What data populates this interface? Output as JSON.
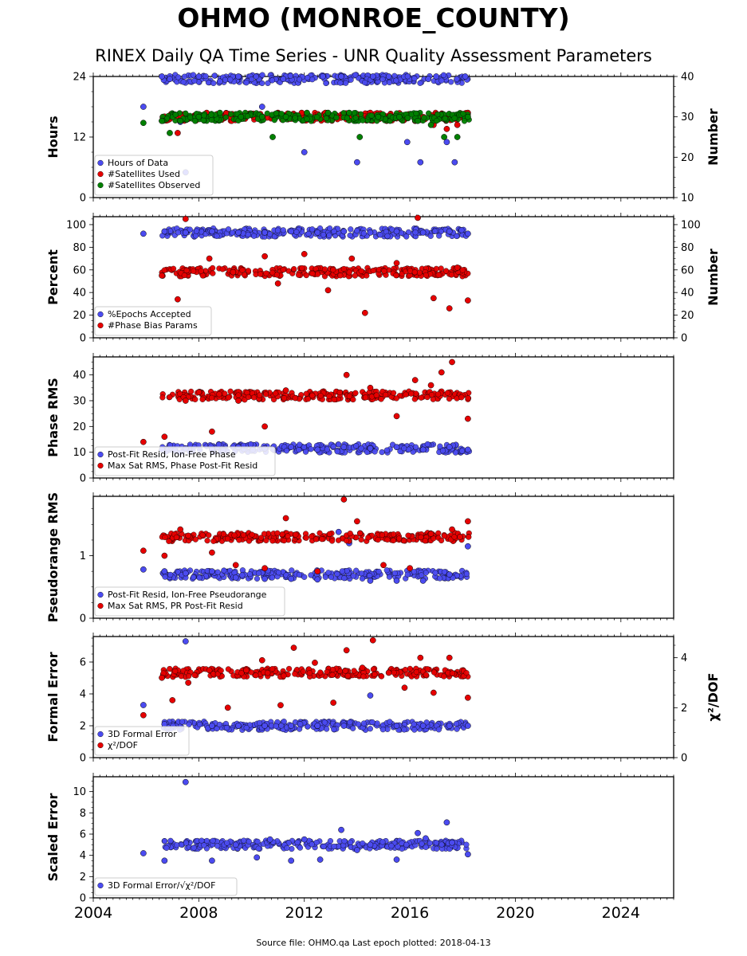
{
  "header": {
    "title": "OHMO (MONROE_COUNTY)",
    "subtitle": "RINEX Daily QA Time Series - UNR Quality Assessment Parameters"
  },
  "footer": {
    "text": "Source file: OHMO.qa Last epoch plotted: 2018-04-13"
  },
  "colors": {
    "blue": "#4b4bf0",
    "red": "#e60000",
    "green": "#008000"
  },
  "chart_data": [
    {
      "type": "scatter",
      "ylabel": "Hours",
      "ylabel_right": "Number",
      "xlim": [
        2004,
        2026
      ],
      "ylim": [
        0,
        24
      ],
      "ylim_right": [
        10,
        40
      ],
      "yticks": [
        "0",
        "12",
        "24"
      ],
      "yticks_right": [
        "10",
        "20",
        "30",
        "40"
      ],
      "legend": "lower-left",
      "series": [
        {
          "name": "Hours of Data",
          "color": "blue",
          "axis": "left",
          "x": [
            2005.9,
            2006.6,
            2006.9,
            2007.3,
            2007.5,
            2008.0,
            2008.8,
            2009.5,
            2010.4,
            2011.2,
            2012.0,
            2012.7,
            2013.4,
            2014.0,
            2014.6,
            2015.2,
            2015.9,
            2016.4,
            2016.7,
            2017.0,
            2017.4,
            2017.7,
            2018.1
          ],
          "y": [
            18,
            24,
            23.5,
            15,
            5,
            24,
            23,
            24,
            18,
            23.5,
            9,
            24,
            24,
            7,
            24,
            24,
            11,
            7,
            23.5,
            24,
            11,
            7,
            24
          ]
        },
        {
          "name": "#Satellites Used",
          "color": "red",
          "axis": "right",
          "x": [
            2006.6,
            2007.2,
            2007.6,
            2008.3,
            2009.2,
            2010.1,
            2011.0,
            2011.9,
            2012.8,
            2013.7,
            2014.5,
            2015.4,
            2016.2,
            2016.9,
            2017.4,
            2017.8,
            2018.2
          ],
          "y": [
            29,
            26,
            29.5,
            31,
            30,
            30,
            31,
            31,
            31,
            30,
            31,
            30,
            29,
            28,
            27,
            28,
            31
          ]
        },
        {
          "name": "#Satellites Observed",
          "color": "green",
          "axis": "right",
          "x": [
            2005.9,
            2006.6,
            2006.9,
            2007.3,
            2008.0,
            2008.8,
            2009.6,
            2010.4,
            2010.8,
            2011.3,
            2012.1,
            2012.9,
            2013.7,
            2014.1,
            2014.8,
            2015.6,
            2016.3,
            2016.8,
            2017.3,
            2017.8,
            2018.2
          ],
          "y": [
            28.5,
            29,
            26,
            29,
            30,
            31,
            30,
            30,
            25,
            30,
            31,
            31,
            31,
            25,
            30,
            30,
            29,
            28,
            25,
            25,
            30
          ]
        }
      ]
    },
    {
      "type": "scatter",
      "ylabel": "Percent",
      "ylabel_right": "Number",
      "xlim": [
        2004,
        2026
      ],
      "ylim": [
        0,
        107
      ],
      "ylim_right": [
        0,
        107
      ],
      "yticks": [
        "0",
        "20",
        "40",
        "60",
        "80",
        "100"
      ],
      "yticks_right": [
        "0",
        "20",
        "40",
        "60",
        "80",
        "100"
      ],
      "legend": "lower-left",
      "series": [
        {
          "name": "%Epochs Accepted",
          "color": "blue",
          "axis": "left",
          "x": [
            2005.9,
            2006.7,
            2007.5,
            2008.5,
            2009.5,
            2010.5,
            2011.5,
            2012.5,
            2013.5,
            2014.5,
            2015.5,
            2016.5,
            2017.5,
            2018.2
          ],
          "y": [
            92,
            94,
            93,
            94,
            93,
            93,
            94,
            93,
            94,
            93,
            94,
            93,
            94,
            92
          ]
        },
        {
          "name": "#Phase Bias Params",
          "color": "red",
          "axis": "right",
          "x": [
            2006.6,
            2007.2,
            2007.5,
            2008.4,
            2009.3,
            2010.5,
            2011.0,
            2012.0,
            2012.9,
            2013.8,
            2014.3,
            2015.5,
            2016.3,
            2016.9,
            2017.5,
            2017.8,
            2018.2
          ],
          "y": [
            55,
            34,
            105,
            70,
            58,
            72,
            48,
            74,
            42,
            70,
            22,
            66,
            106,
            35,
            26,
            62,
            33
          ]
        }
      ]
    },
    {
      "type": "scatter",
      "ylabel": "Phase RMS",
      "xlim": [
        2004,
        2026
      ],
      "ylim": [
        0,
        47
      ],
      "yticks": [
        "0",
        "10",
        "20",
        "30",
        "40"
      ],
      "legend": "lower-left",
      "series": [
        {
          "name": "Post-Fit Resid, Ion-Free Phase",
          "color": "blue",
          "axis": "left",
          "x": [
            2006.6,
            2007.5,
            2008.5,
            2009.5,
            2010.5,
            2011.5,
            2012.5,
            2013.5,
            2014.5,
            2015.5,
            2016.5,
            2017.5,
            2018.2
          ],
          "y": [
            11,
            11.5,
            11,
            12,
            11.5,
            12,
            11,
            12,
            11.5,
            12,
            11,
            12,
            11
          ]
        },
        {
          "name": "Max Sat RMS, Phase Post-Fit Resid",
          "color": "red",
          "axis": "left",
          "x": [
            2005.9,
            2006.7,
            2007.5,
            2008.5,
            2009.5,
            2010.5,
            2011.3,
            2012.3,
            2013.6,
            2014.5,
            2015.5,
            2016.2,
            2016.8,
            2017.2,
            2017.6,
            2018.2
          ],
          "y": [
            14,
            16,
            30,
            18,
            30,
            20,
            34,
            32,
            40,
            35,
            24,
            38,
            36,
            41,
            45,
            23
          ]
        }
      ]
    },
    {
      "type": "scatter",
      "ylabel": "Pseudorange RMS",
      "xlim": [
        2004,
        2026
      ],
      "ylim": [
        0,
        1.95
      ],
      "yticks": [
        "0",
        "1"
      ],
      "legend": "lower-left",
      "series": [
        {
          "name": "Post-Fit Resid, Ion-Free Pseudorange",
          "color": "blue",
          "axis": "left",
          "x": [
            2005.9,
            2006.7,
            2007.5,
            2008.5,
            2009.4,
            2010.5,
            2011.5,
            2012.5,
            2013.3,
            2013.7,
            2014.5,
            2015.5,
            2016.5,
            2017.5,
            2018.2
          ],
          "y": [
            0.78,
            0.75,
            0.72,
            0.75,
            0.65,
            0.63,
            0.63,
            0.62,
            1.38,
            1.2,
            0.6,
            0.6,
            0.6,
            0.7,
            1.15
          ]
        },
        {
          "name": "Max Sat RMS, PR Post-Fit Resid",
          "color": "red",
          "axis": "left",
          "x": [
            2005.9,
            2006.7,
            2007.3,
            2007.6,
            2008.5,
            2009.4,
            2010.5,
            2011.3,
            2012.5,
            2013.5,
            2014.0,
            2015.0,
            2016.0,
            2016.8,
            2017.6,
            2017.9,
            2018.2
          ],
          "y": [
            1.08,
            1.0,
            1.42,
            1.32,
            1.05,
            0.85,
            0.8,
            1.6,
            0.75,
            1.9,
            1.55,
            0.85,
            0.8,
            1.35,
            1.42,
            1.3,
            1.55
          ]
        }
      ]
    },
    {
      "type": "scatter",
      "ylabel": "Formal Error",
      "ylabel_right": "χ²/DOF",
      "xlim": [
        2004,
        2026
      ],
      "ylim": [
        0,
        7.6
      ],
      "ylim_right": [
        0,
        4.85
      ],
      "yticks": [
        "0",
        "2",
        "4",
        "6"
      ],
      "yticks_right": [
        "0",
        "2",
        "4"
      ],
      "legend": "lower-left",
      "series": [
        {
          "name": "3D Formal Error",
          "color": "blue",
          "axis": "left",
          "x": [
            2005.9,
            2006.7,
            2007.5,
            2008.5,
            2009.5,
            2010.5,
            2011.5,
            2012.5,
            2013.5,
            2014.5,
            2015.5,
            2016.5,
            2017.5,
            2018.2
          ],
          "y": [
            3.3,
            2.1,
            7.3,
            2.0,
            2.0,
            2.0,
            2.0,
            2.0,
            2.0,
            3.9,
            2.0,
            2.0,
            2.0,
            2.0
          ]
        },
        {
          "name": "χ²/DOF",
          "color": "red",
          "axis": "right",
          "x": [
            2005.9,
            2006.6,
            2007.0,
            2007.6,
            2008.4,
            2009.1,
            2009.8,
            2010.4,
            2011.1,
            2011.6,
            2012.4,
            2013.1,
            2013.6,
            2014.2,
            2014.6,
            2015.2,
            2015.8,
            2016.4,
            2016.9,
            2017.5,
            2018.2
          ],
          "y": [
            1.7,
            3.2,
            2.3,
            3.0,
            3.5,
            2.0,
            3.5,
            3.9,
            2.1,
            4.4,
            3.8,
            2.2,
            4.3,
            3.6,
            4.7,
            3.4,
            2.8,
            4.0,
            2.6,
            4.0,
            2.4
          ]
        }
      ]
    },
    {
      "type": "scatter",
      "ylabel": "Scaled Error",
      "xlim": [
        2004,
        2026
      ],
      "ylim": [
        0,
        11.4
      ],
      "yticks": [
        "0",
        "2",
        "4",
        "6",
        "8",
        "10"
      ],
      "xticks": [
        "2004",
        "2008",
        "2012",
        "2016",
        "2020",
        "2024"
      ],
      "legend": "lower-left",
      "series": [
        {
          "name": "3D Formal Error/√χ²/DOF",
          "color": "blue",
          "axis": "left",
          "x": [
            2005.9,
            2006.7,
            2007.5,
            2008.5,
            2009.4,
            2010.2,
            2010.7,
            2011.5,
            2012.0,
            2012.6,
            2013.4,
            2014.0,
            2014.5,
            2015.5,
            2016.3,
            2016.6,
            2017.4,
            2017.6,
            2018.2
          ],
          "y": [
            4.2,
            3.5,
            10.9,
            3.5,
            5.0,
            3.8,
            5.5,
            3.5,
            5.5,
            3.6,
            6.4,
            4.5,
            5.0,
            3.6,
            6.1,
            5.6,
            7.1,
            5.2,
            4.1
          ]
        }
      ]
    }
  ]
}
